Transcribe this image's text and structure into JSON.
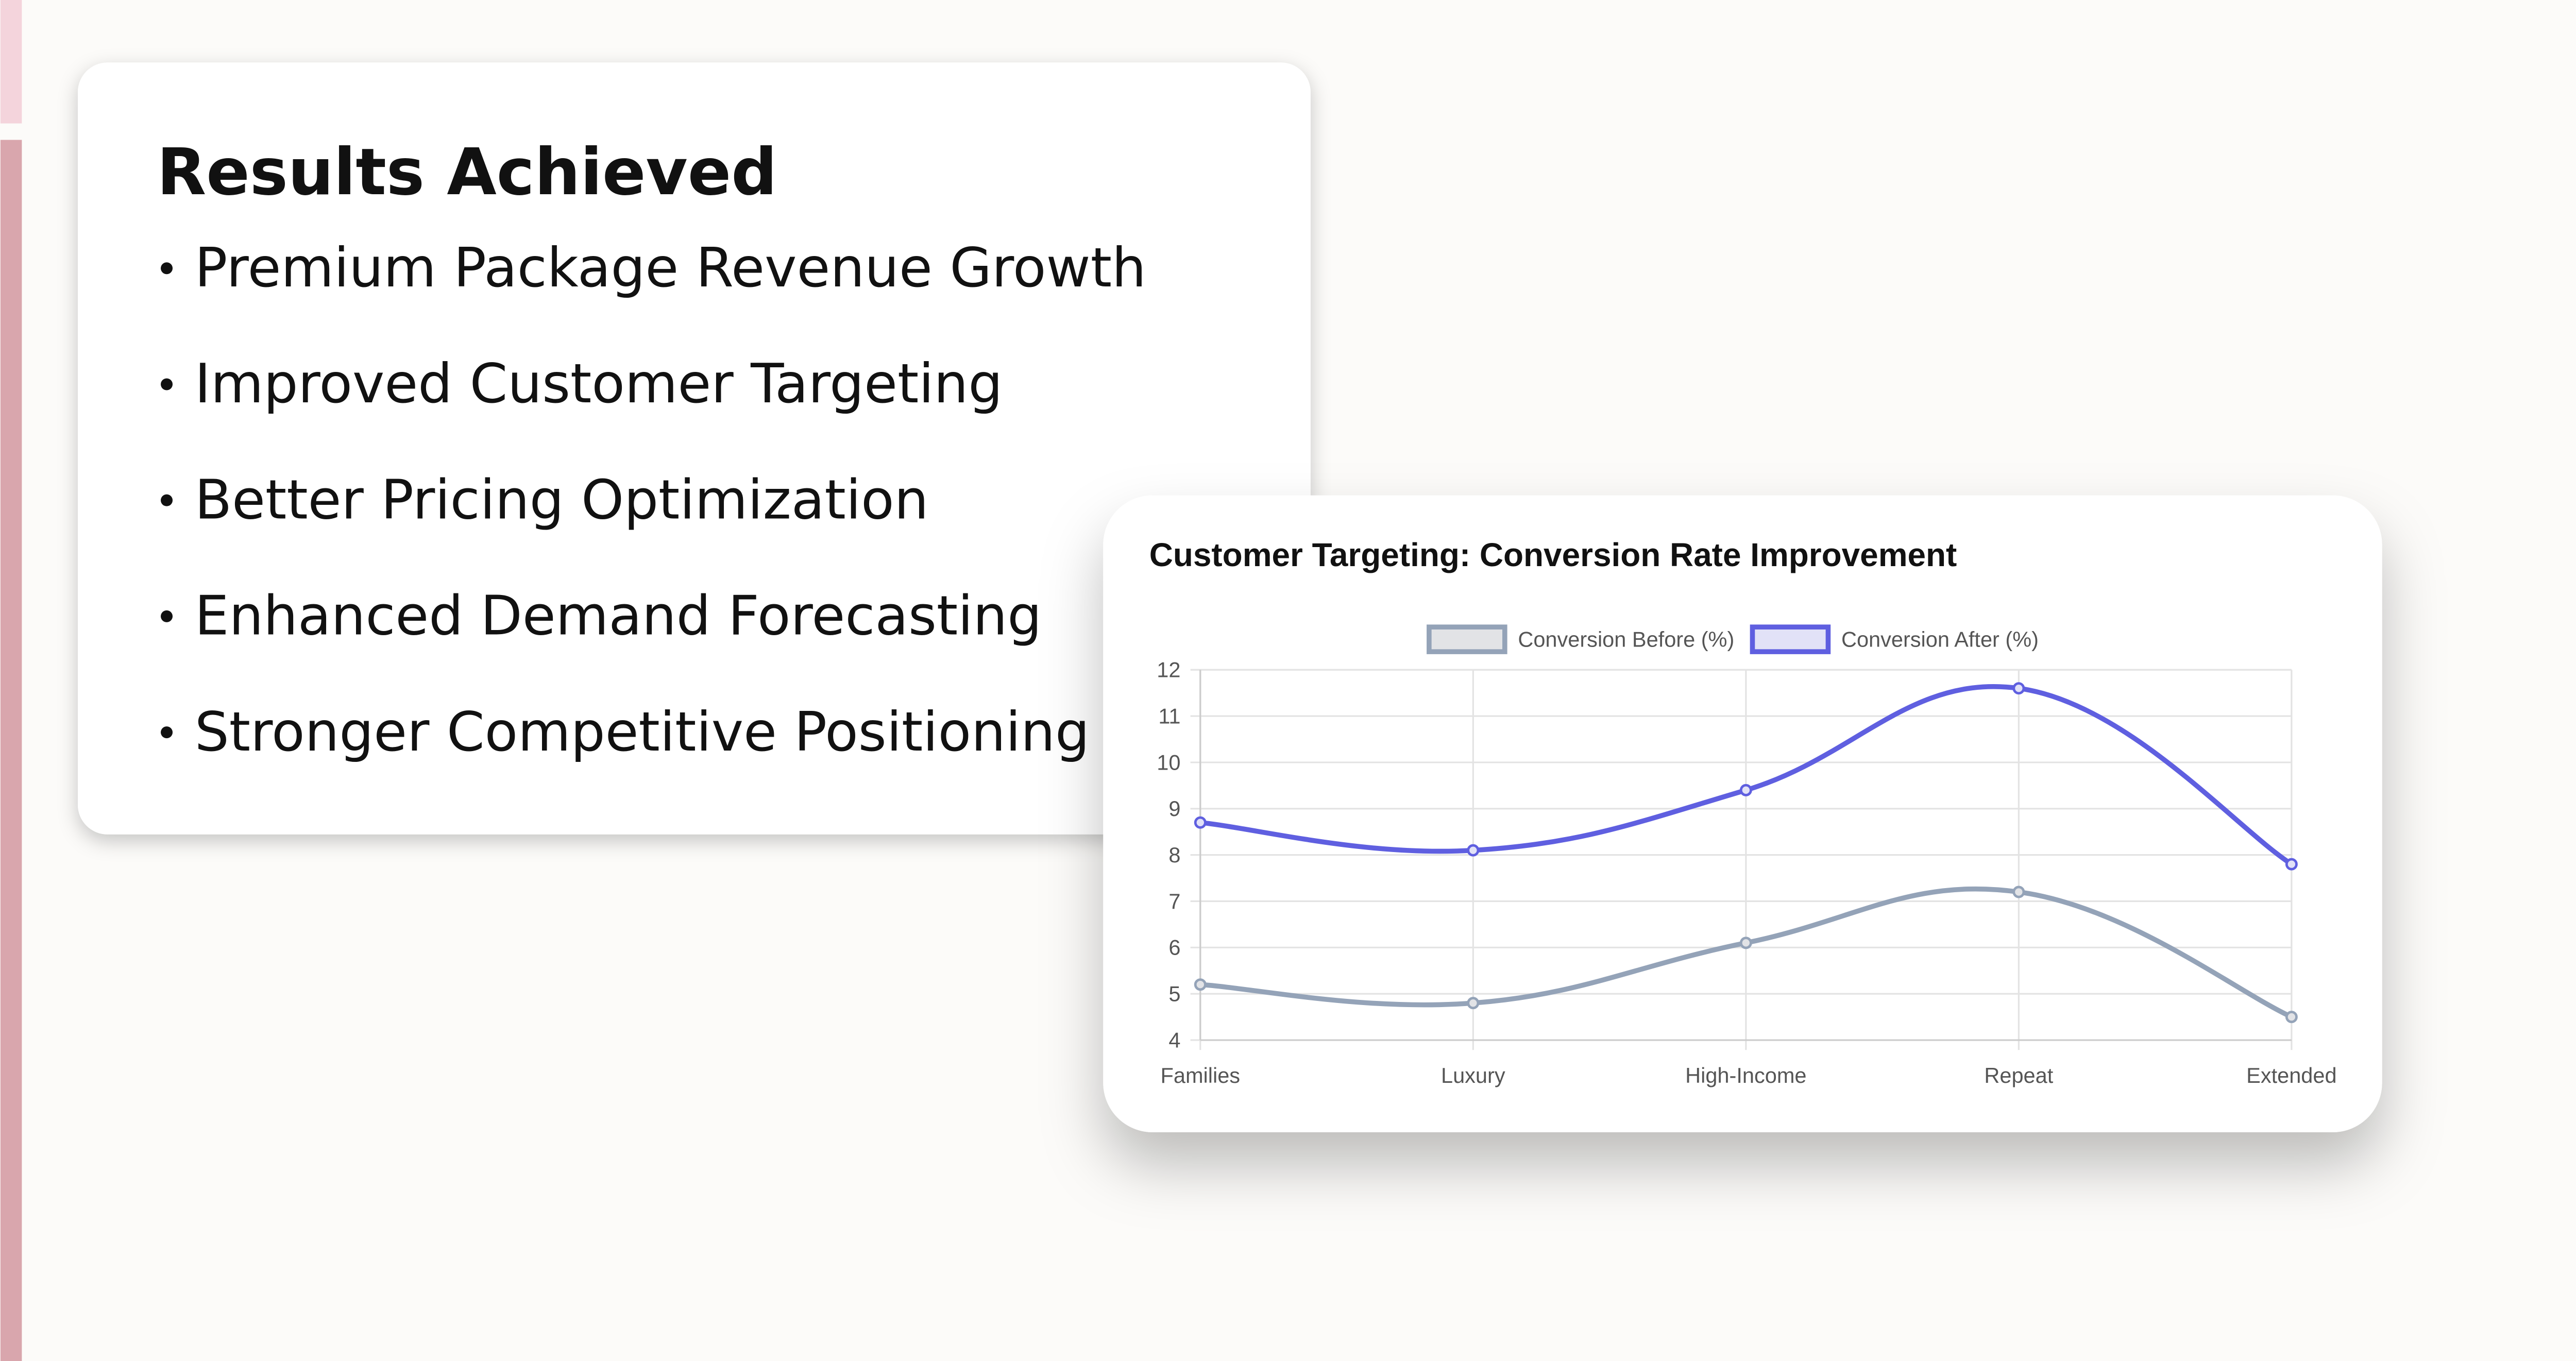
{
  "card": {
    "title": "Results Achieved",
    "items": [
      "Premium Package Revenue Growth",
      "Improved Customer Targeting",
      "Better Pricing Optimization",
      "Enhanced Demand Forecasting",
      "Stronger Competitive Positioning"
    ]
  },
  "chart_data": {
    "type": "line",
    "title": "Customer Targeting: Conversion Rate Improvement",
    "categories": [
      "Families",
      "Luxury",
      "High-Income",
      "Repeat",
      "Extended"
    ],
    "series": [
      {
        "name": "Conversion Before (%)",
        "color": "#94a3b8",
        "values": [
          5.2,
          4.8,
          6.1,
          7.2,
          4.5
        ]
      },
      {
        "name": "Conversion After (%)",
        "color": "#5f5fe0",
        "values": [
          8.7,
          8.1,
          9.4,
          11.6,
          7.8
        ]
      }
    ],
    "ylim": [
      4,
      12
    ],
    "yticks": [
      4,
      5,
      6,
      7,
      8,
      9,
      10,
      11,
      12
    ],
    "grid": true,
    "legend": "top"
  }
}
